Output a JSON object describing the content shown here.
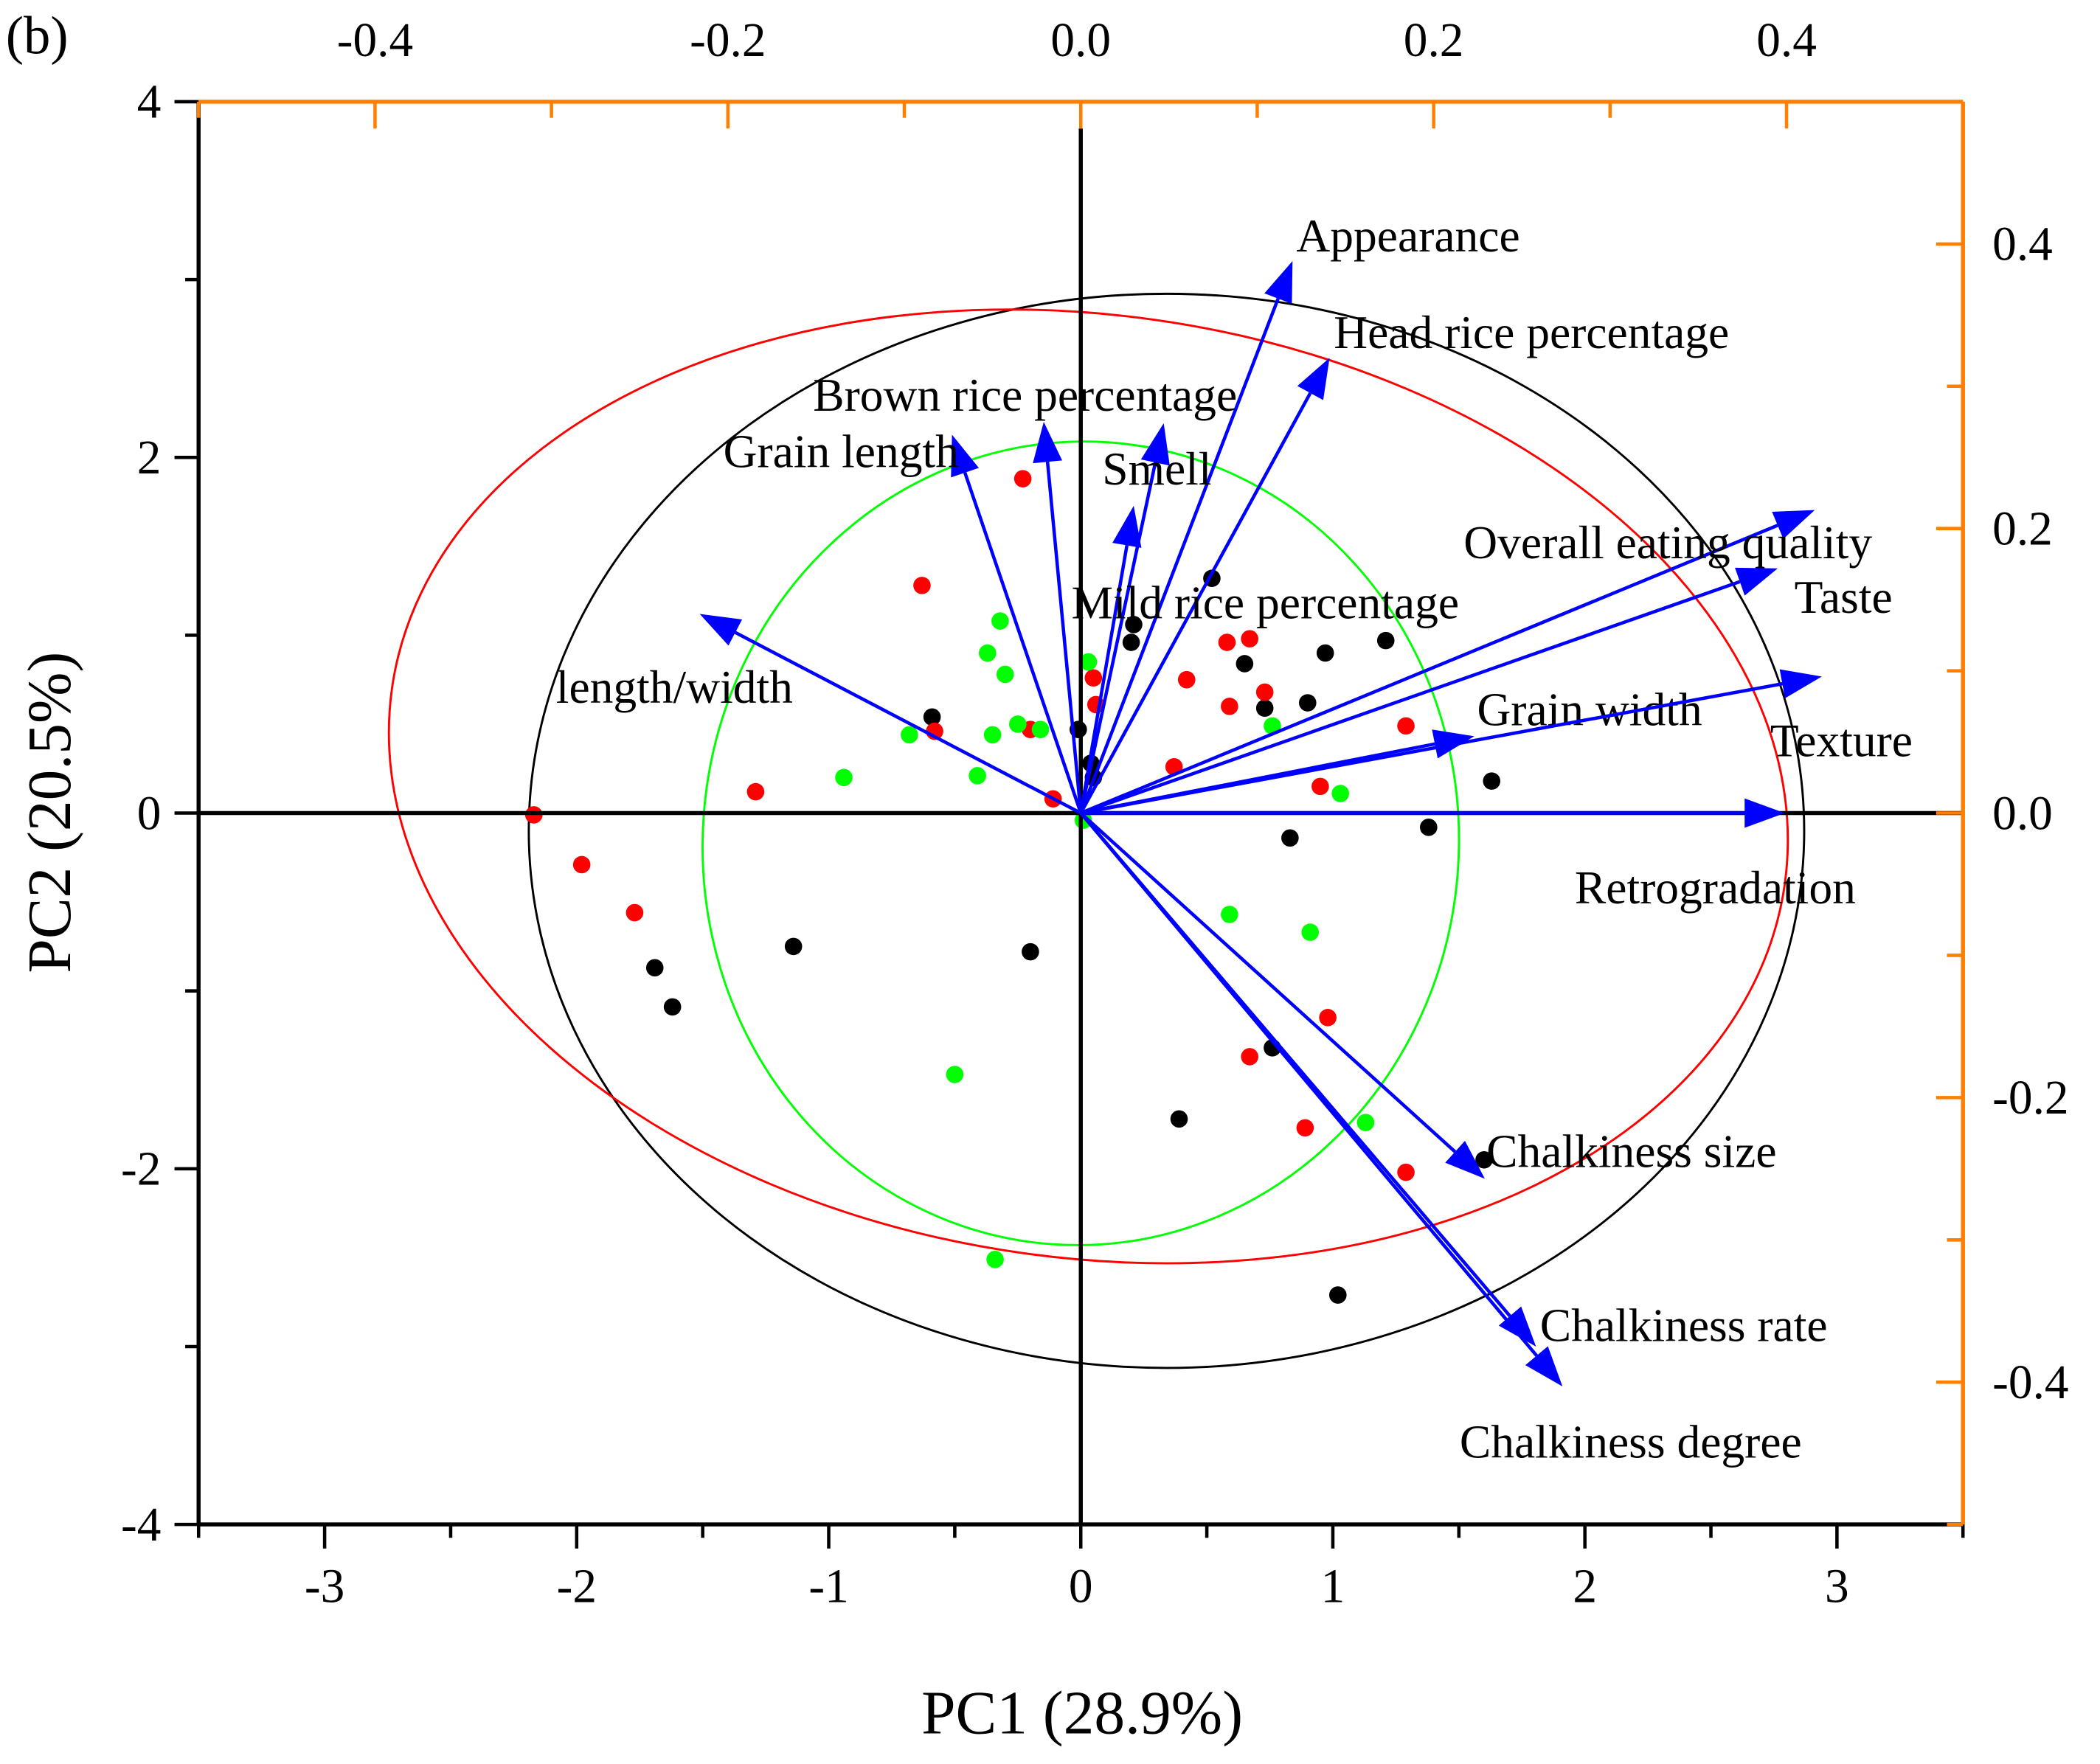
{
  "chart_data": {
    "type": "scatter",
    "subtype": "pca-biplot",
    "panel_label": "(b)",
    "xlabel": "PC1 (28.9%)",
    "ylabel": "PC2 (20.5%)",
    "xlim": [
      -3.5,
      3.5
    ],
    "ylim": [
      -4,
      4
    ],
    "x_ticks": [
      "-3",
      "-2",
      "-1",
      "0",
      "1",
      "2",
      "3"
    ],
    "y_ticks": [
      "-4",
      "-2",
      "0",
      "2",
      "4"
    ],
    "top_xlim": [
      -0.5,
      0.5
    ],
    "top_ticks": [
      "-0.4",
      "-0.2",
      "0.0",
      "0.2",
      "0.4"
    ],
    "right_ylim": [
      -0.5,
      0.5
    ],
    "right_ticks": [
      "0.4",
      "0.2",
      "0.0",
      "-0.2",
      "-0.4"
    ],
    "colors": {
      "axis": "#000000",
      "secondary_axis": "#FF8000",
      "loading": "#0000FF"
    },
    "groups": [
      {
        "color": "#000000",
        "ellipse": {
          "cx": 0.34,
          "cy": -0.1,
          "rx": 2.53,
          "ry": 3.02
        },
        "points": [
          [
            0.52,
            1.32
          ],
          [
            0.21,
            1.06
          ],
          [
            0.2,
            0.96
          ],
          [
            0.65,
            0.84
          ],
          [
            1.21,
            0.97
          ],
          [
            0.97,
            0.9
          ],
          [
            0.9,
            0.62
          ],
          [
            0.73,
            0.59
          ],
          [
            -0.59,
            0.54
          ],
          [
            -0.01,
            0.47
          ],
          [
            0.04,
            0.28
          ],
          [
            0.05,
            0.2
          ],
          [
            1.63,
            0.18
          ],
          [
            0.83,
            -0.14
          ],
          [
            1.38,
            -0.08
          ],
          [
            -1.14,
            -0.75
          ],
          [
            -0.2,
            -0.78
          ],
          [
            -1.69,
            -0.87
          ],
          [
            -1.62,
            -1.09
          ],
          [
            0.76,
            -1.32
          ],
          [
            0.39,
            -1.72
          ],
          [
            1.6,
            -1.95
          ],
          [
            1.02,
            -2.71
          ]
        ]
      },
      {
        "color": "#FF0000",
        "ellipse": {
          "cx": 0.03,
          "cy": 0.15,
          "rx": 2.79,
          "ry": 2.65
        },
        "points": [
          [
            -0.23,
            1.88
          ],
          [
            -0.63,
            1.28
          ],
          [
            0.58,
            0.96
          ],
          [
            0.67,
            0.98
          ],
          [
            0.42,
            0.75
          ],
          [
            0.05,
            0.76
          ],
          [
            0.06,
            0.61
          ],
          [
            0.73,
            0.68
          ],
          [
            0.59,
            0.6
          ],
          [
            1.29,
            0.49
          ],
          [
            -0.58,
            0.46
          ],
          [
            -0.2,
            0.47
          ],
          [
            -1.29,
            0.12
          ],
          [
            0.37,
            0.26
          ],
          [
            0.95,
            0.15
          ],
          [
            -0.11,
            0.08
          ],
          [
            -2.17,
            -0.01
          ],
          [
            -1.98,
            -0.29
          ],
          [
            -1.77,
            -0.56
          ],
          [
            0.98,
            -1.15
          ],
          [
            0.67,
            -1.37
          ],
          [
            0.89,
            -1.77
          ],
          [
            1.29,
            -2.02
          ]
        ]
      },
      {
        "color": "#00FF00",
        "ellipse": {
          "cx": 0.0,
          "cy": -0.17,
          "rx": 1.5,
          "ry": 2.26
        },
        "points": [
          [
            -0.32,
            1.08
          ],
          [
            -0.37,
            0.9
          ],
          [
            -0.3,
            0.78
          ],
          [
            0.03,
            0.85
          ],
          [
            -0.68,
            0.44
          ],
          [
            -0.35,
            0.44
          ],
          [
            -0.25,
            0.5
          ],
          [
            -0.16,
            0.47
          ],
          [
            -0.94,
            0.2
          ],
          [
            -0.41,
            0.21
          ],
          [
            0.76,
            0.49
          ],
          [
            1.03,
            0.11
          ],
          [
            0.59,
            -0.57
          ],
          [
            0.91,
            -0.67
          ],
          [
            -0.5,
            -1.47
          ],
          [
            1.13,
            -1.74
          ],
          [
            -0.34,
            -2.51
          ],
          [
            0.01,
            -0.04
          ]
        ]
      }
    ],
    "loadings": [
      {
        "name": "Appearance",
        "x": 0.12,
        "y": 0.388
      },
      {
        "name": "Head rice percentage",
        "x": 0.141,
        "y": 0.32
      },
      {
        "name": "Brown rice percentage",
        "x": -0.021,
        "y": 0.275
      },
      {
        "name": "Grain length",
        "x": -0.073,
        "y": 0.266
      },
      {
        "name": "Smell",
        "x": 0.047,
        "y": 0.274
      },
      {
        "name": "Mild rice percentage",
        "x": 0.03,
        "y": 0.216
      },
      {
        "name": "length/width",
        "x": -0.216,
        "y": 0.14
      },
      {
        "name": "Overall eating quality",
        "x": 0.416,
        "y": 0.213
      },
      {
        "name": "Taste",
        "x": 0.395,
        "y": 0.172
      },
      {
        "name": "Grain width",
        "x": 0.223,
        "y": 0.054
      },
      {
        "name": "Texture",
        "x": 0.42,
        "y": 0.096
      },
      {
        "name": "Retrogradation",
        "x": 0.399,
        "y": 0.0
      },
      {
        "name": "Chalkiness size",
        "x": 0.229,
        "y": -0.257
      },
      {
        "name": "Chalkiness rate",
        "x": 0.258,
        "y": -0.375
      },
      {
        "name": "Chalkiness degree",
        "x": 0.273,
        "y": -0.403
      }
    ]
  }
}
